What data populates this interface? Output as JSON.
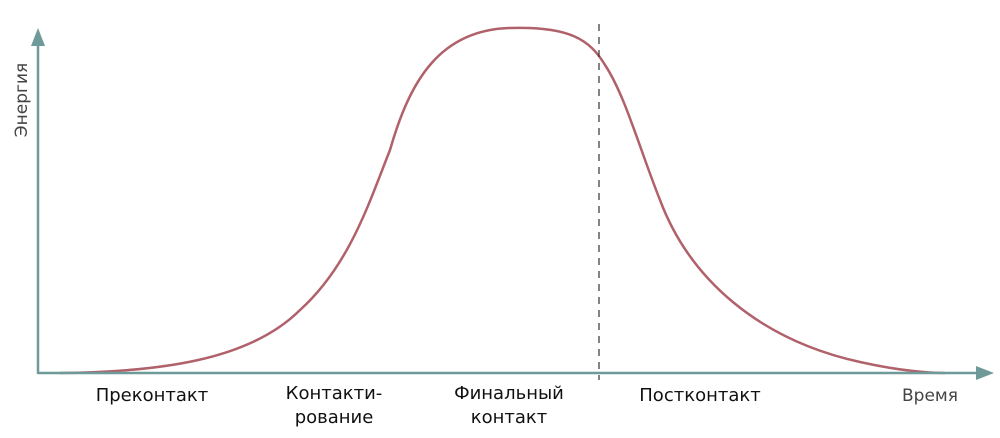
{
  "axes": {
    "y_label": "Энергия",
    "x_label": "Время"
  },
  "phases": [
    {
      "lines": [
        "Преконтакт"
      ]
    },
    {
      "lines": [
        "Контакти-",
        "рование"
      ]
    },
    {
      "lines": [
        "Финальный",
        "контакт"
      ]
    },
    {
      "lines": [
        "Постконтакт"
      ]
    }
  ],
  "colors": {
    "axis": "#6f9a9a",
    "curve": "#b0616a",
    "divider": "#333333",
    "text": "#111111"
  }
}
